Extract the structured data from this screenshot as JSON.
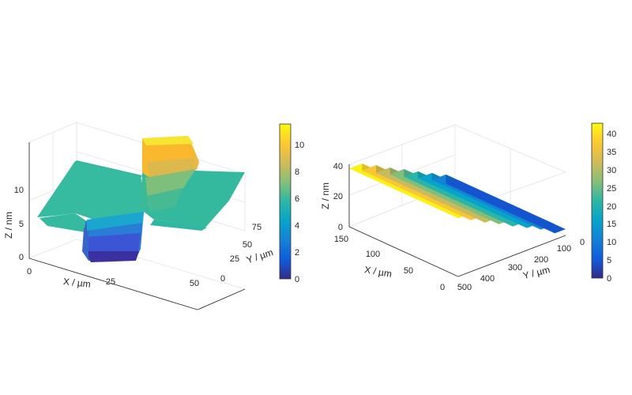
{
  "chart_data": [
    {
      "type": "surface",
      "description_free": true,
      "x_axis": {
        "label": "X / µm",
        "ticks": [
          "0",
          "25",
          "50"
        ],
        "range": [
          0,
          50
        ]
      },
      "y_axis": {
        "label": "Y / µm",
        "ticks": [
          "0",
          "25",
          "50",
          "75"
        ],
        "range": [
          0,
          100
        ]
      },
      "z_axis": {
        "label": "Z / nm",
        "ticks": [
          "0",
          "5",
          "10"
        ],
        "range": [
          0,
          11.5
        ]
      },
      "colorbar": {
        "ticks": [
          "0",
          "2",
          "4",
          "6",
          "8",
          "10"
        ],
        "range": [
          0,
          11.5
        ]
      },
      "surface": {
        "baseline_z": 6,
        "trench_min_z": 0.4,
        "ridge_max_z": 11.2,
        "feature_x_range": [
          19,
          28
        ],
        "trench_y_range": [
          0,
          50
        ],
        "ridge_y_range": [
          50,
          100
        ]
      },
      "grid": true,
      "colormap": "parula"
    },
    {
      "type": "surface",
      "x_axis": {
        "label": "X / µm",
        "ticks": [
          "0",
          "50",
          "100",
          "150"
        ],
        "range": [
          0,
          150
        ]
      },
      "y_axis": {
        "label": "Y / µm",
        "ticks": [
          "0",
          "100",
          "200",
          "300",
          "400",
          "500"
        ],
        "range": [
          0,
          500
        ]
      },
      "z_axis": {
        "label": "Z / nm",
        "ticks": [
          "0",
          "20",
          "40"
        ],
        "range": [
          0,
          45
        ]
      },
      "colorbar": {
        "ticks": [
          "0",
          "5",
          "10",
          "15",
          "20",
          "25",
          "30",
          "35",
          "40"
        ],
        "range": [
          0,
          43
        ]
      },
      "surface": {
        "step_y_edges": [
          0,
          60,
          125,
          190,
          255,
          320,
          385,
          450,
          500
        ],
        "step_heights_z": [
          42,
          37,
          31.5,
          26.5,
          21,
          16,
          11,
          4.5
        ]
      },
      "grid": true,
      "colormap": "parula"
    }
  ],
  "colors": {
    "colormap": [
      "#352A87",
      "#0F5CDD",
      "#1481D6",
      "#06A4CA",
      "#2EB7A4",
      "#87BF77",
      "#D1BB59",
      "#FEC832",
      "#F9FB0E"
    ]
  }
}
